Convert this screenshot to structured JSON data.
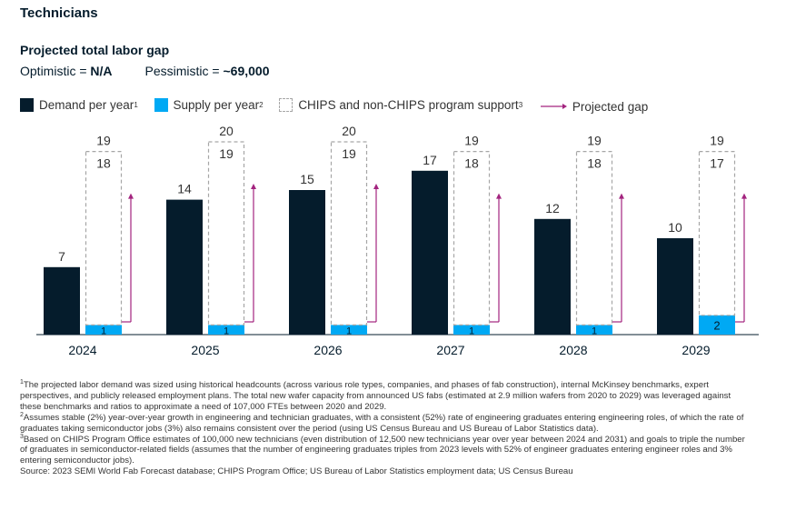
{
  "heading": "Technicians",
  "subtitle": "Projected total labor gap",
  "scenarios": {
    "optimistic_label": "Optimistic = ",
    "optimistic_value": "N/A",
    "pessimistic_label": "Pessimistic = ",
    "pessimistic_value": "~69,000"
  },
  "legend": {
    "demand": "Demand per year",
    "demand_sup": "1",
    "supply": "Supply per year",
    "supply_sup": "2",
    "chips": "CHIPS and non-CHIPS program support",
    "chips_sup": "3",
    "gap": "Projected gap"
  },
  "colors": {
    "demand": "#051c2c",
    "supply": "#00a9f4",
    "chips_border": "#a6a6a6",
    "gap_arrow": "#a3247f",
    "axis": "#051c2c"
  },
  "chart_data": {
    "type": "bar",
    "categories": [
      "2024",
      "2025",
      "2026",
      "2027",
      "2028",
      "2029"
    ],
    "series": [
      {
        "name": "Demand per year",
        "values": [
          7,
          14,
          15,
          17,
          12,
          10
        ]
      },
      {
        "name": "Supply per year",
        "values": [
          1,
          1,
          1,
          1,
          1,
          2
        ]
      },
      {
        "name": "CHIPS and non-CHIPS program support",
        "values": [
          18,
          19,
          19,
          18,
          18,
          17
        ]
      }
    ],
    "supply_plus_support_totals": [
      19,
      20,
      20,
      19,
      19,
      19
    ],
    "projected_gap": "arrow on each year",
    "ylim": [
      0,
      20
    ]
  },
  "footnotes": [
    {
      "sup": "1",
      "text": "The projected labor demand was sized using historical headcounts (across various role types, companies, and phases of fab construction), internal McKinsey benchmarks, expert perspectives, and publicly released employment plans. The total new wafer capacity from announced US fabs (estimated at 2.9 million wafers from 2020 to 2029) was leveraged against these benchmarks and ratios to approximate a need of 107,000 FTEs between 2020 and 2029."
    },
    {
      "sup": "2",
      "text": "Assumes stable (2%) year-over-year growth in engineering and technician graduates, with a consistent (52%) rate of engineering graduates entering engineering roles, of which the rate of graduates taking semiconductor jobs (3%) also remains consistent over the period (using US Census Bureau and US Bureau of Labor Statistics data)."
    },
    {
      "sup": "3",
      "text": "Based on CHIPS Program Office estimates of 100,000 new technicians (even distribution of 12,500 new technicians year over year between 2024 and 2031) and goals to triple the number of graduates in semiconductor-related fields (assumes that the number of engineering graduates triples from 2023 levels with 52% of engineer graduates entering engineer roles and 3% entering semiconductor jobs)."
    }
  ],
  "source": "Source:  2023 SEMI World Fab Forecast database; CHIPS Program Office; US Bureau of Labor Statistics employment data; US Census Bureau"
}
